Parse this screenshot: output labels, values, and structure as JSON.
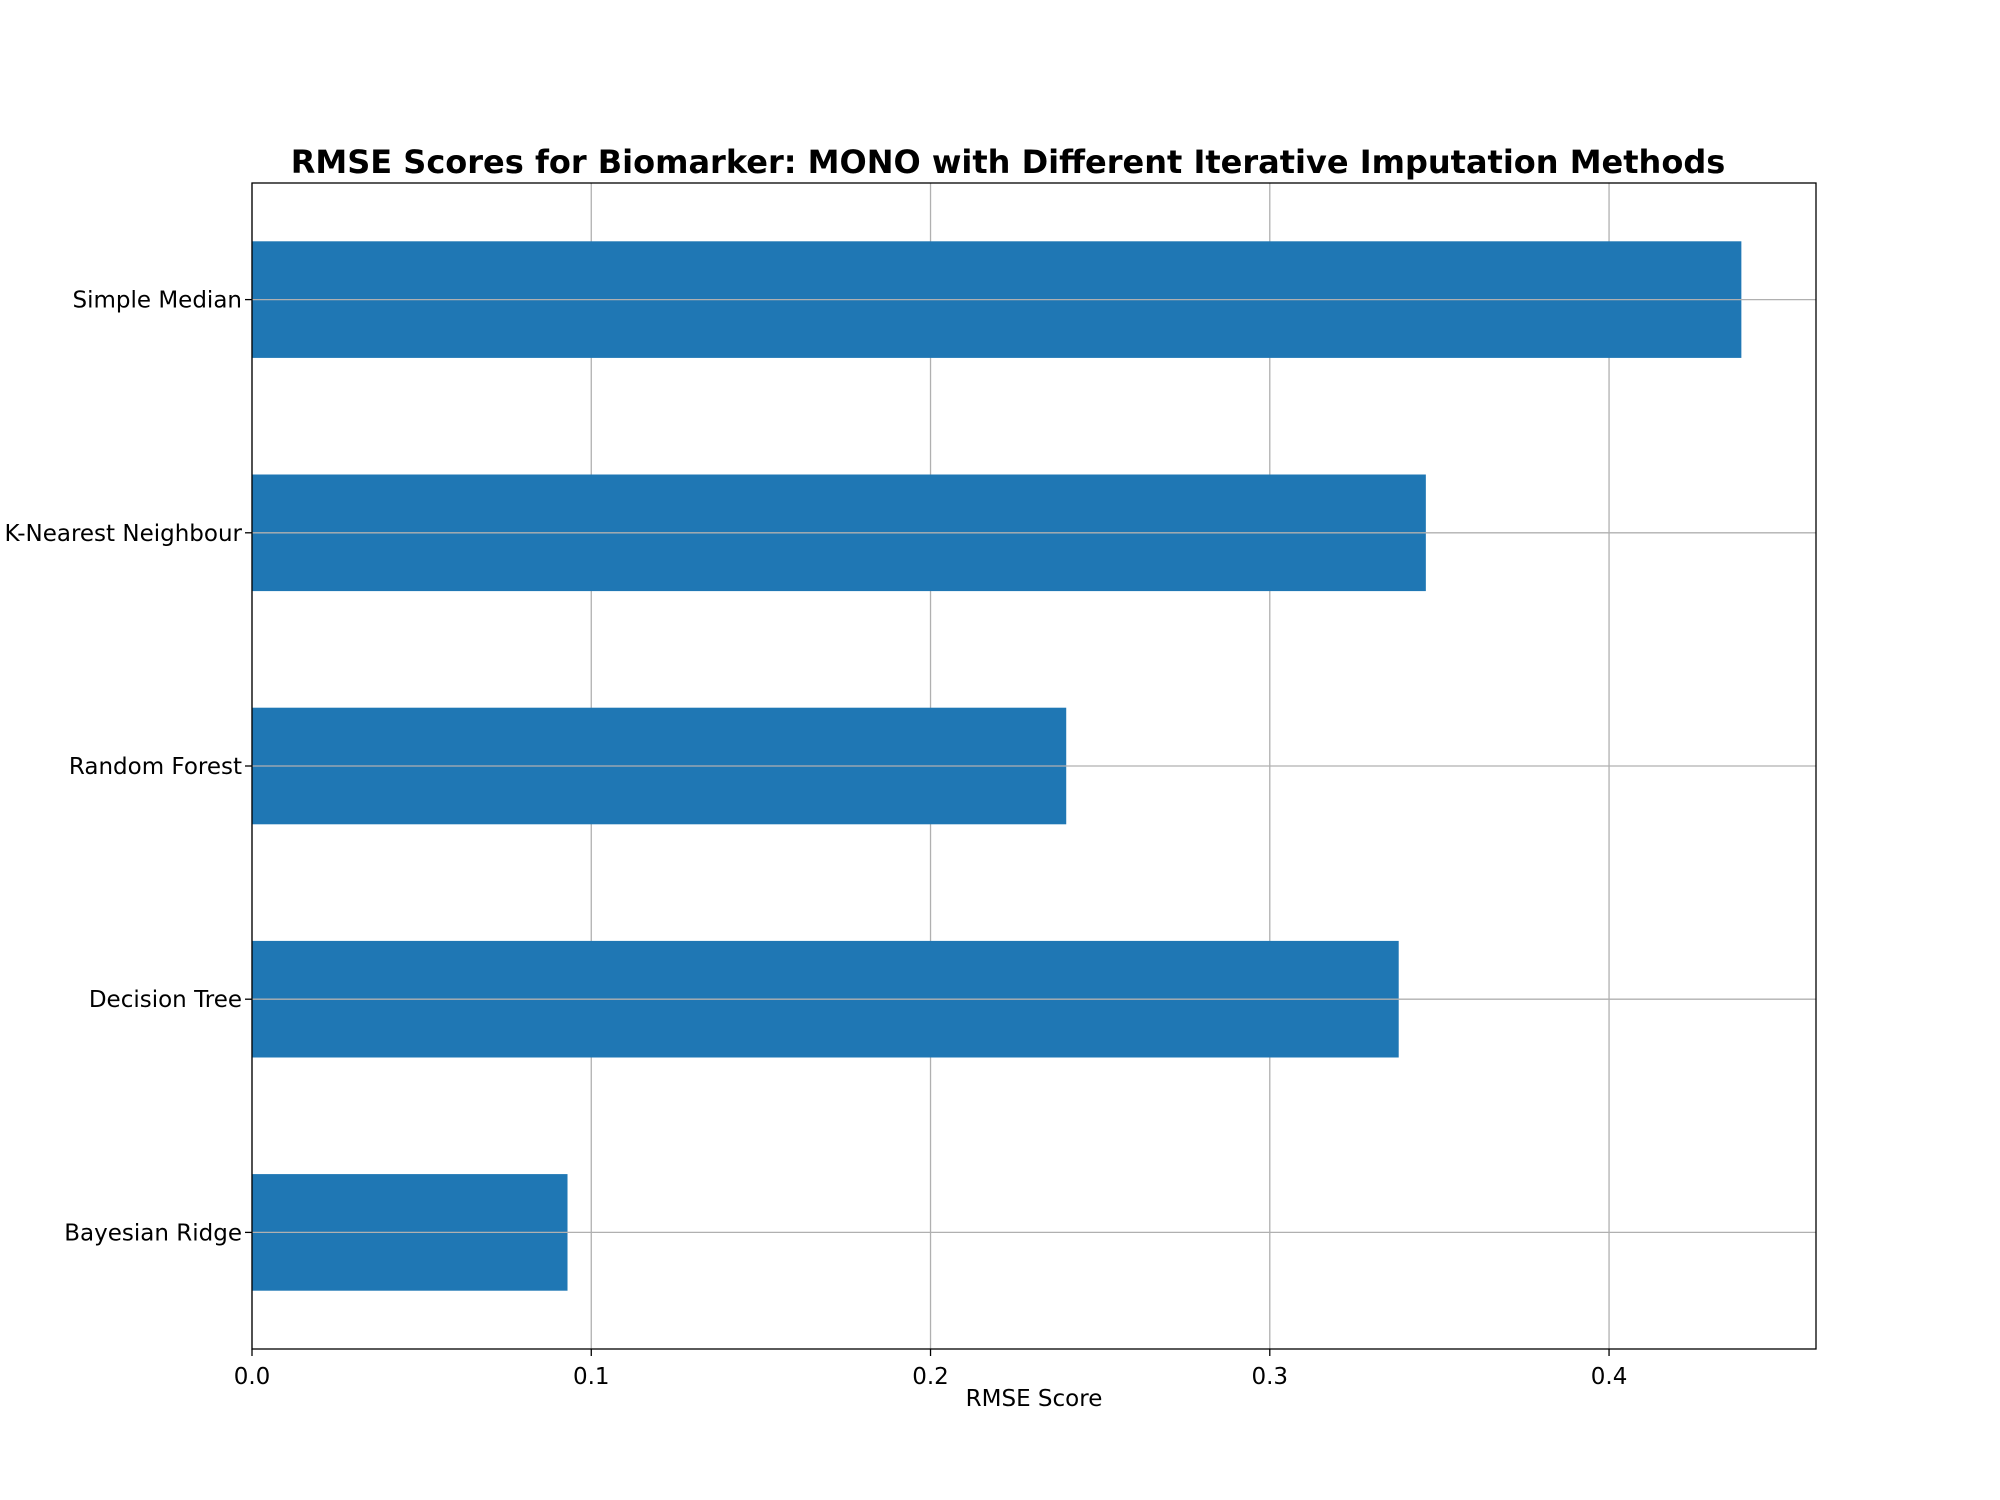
{
  "chart_data": {
    "type": "bar",
    "orientation": "horizontal",
    "title": "RMSE Scores for Biomarker: MONO with Different Iterative Imputation Methods",
    "xlabel": "RMSE Score",
    "ylabel": "",
    "categories": [
      "Simple Median",
      "K-Nearest Neighbour",
      "Random Forest",
      "Decision Tree",
      "Bayesian Ridge"
    ],
    "values": [
      0.439,
      0.346,
      0.24,
      0.338,
      0.093
    ],
    "xlim": [
      0,
      0.461
    ],
    "xticks": [
      0.0,
      0.1,
      0.2,
      0.3,
      0.4
    ],
    "xtick_labels": [
      "0.0",
      "0.1",
      "0.2",
      "0.3",
      "0.4"
    ],
    "grid": true,
    "bar_color": "#1f77b4"
  }
}
